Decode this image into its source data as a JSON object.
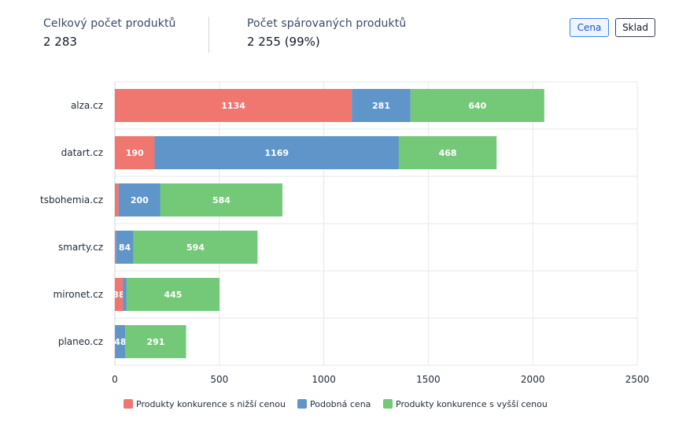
{
  "stats": {
    "total_label": "Celkový počet produktů",
    "total_value": "2 283",
    "paired_label": "Počet spárovaných produktů",
    "paired_value": "2 255 (99%)"
  },
  "toggle": {
    "cena_label": "Cena",
    "sklad_label": "Sklad",
    "active": "Cena"
  },
  "chart_data": {
    "type": "bar",
    "orientation": "horizontal",
    "stacked": true,
    "categories": [
      "alza.cz",
      "datart.cz",
      "tsbohemia.cz",
      "smarty.cz",
      "mironet.cz",
      "planeo.cz"
    ],
    "series": [
      {
        "name": "Produkty konkurence s nižší cenou",
        "color": "#f07670",
        "values": [
          1134,
          190,
          18,
          5,
          38,
          2
        ]
      },
      {
        "name": "Podobná cena",
        "color": "#5f95c8",
        "values": [
          281,
          1169,
          200,
          84,
          18,
          48
        ]
      },
      {
        "name": "Produkty konkurence s vyšší cenou",
        "color": "#73c977",
        "values": [
          640,
          468,
          584,
          594,
          445,
          291
        ]
      }
    ],
    "label_threshold": 30,
    "xlim": [
      0,
      2500
    ],
    "xticks": [
      0,
      500,
      1000,
      1500,
      2000,
      2500
    ],
    "grid": true,
    "legend_position": "bottom"
  }
}
